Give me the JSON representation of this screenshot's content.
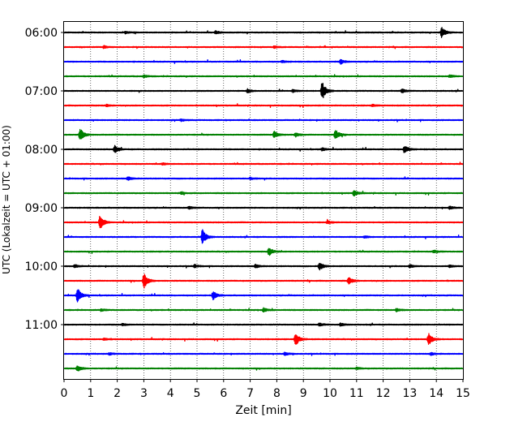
{
  "chart_data": {
    "type": "line",
    "title": "",
    "xlabel": "Zeit  [min]",
    "ylabel": "UTC (Lokalzeit = UTC + 01:00)",
    "xlim": [
      0,
      15
    ],
    "x_ticks": [
      "0",
      "1",
      "2",
      "3",
      "4",
      "5",
      "6",
      "7",
      "8",
      "9",
      "10",
      "11",
      "12",
      "13",
      "14",
      "15"
    ],
    "y_tick_labels": [
      "06:00",
      "07:00",
      "08:00",
      "09:00",
      "10:00",
      "11:00"
    ],
    "grid": "vertical dotted",
    "trace_interval_min": 15,
    "colors": [
      "#000000",
      "#ff0000",
      "#0000ff",
      "#008000"
    ],
    "series": [
      {
        "start": "06:00",
        "color": "#000000",
        "events": [
          [
            14.2,
            1.0
          ],
          [
            5.7,
            0.3
          ],
          [
            2.3,
            0.2
          ]
        ]
      },
      {
        "start": "06:15",
        "color": "#ff0000",
        "events": [
          [
            1.5,
            0.25
          ],
          [
            7.9,
            0.2
          ]
        ]
      },
      {
        "start": "06:30",
        "color": "#0000ff",
        "events": [
          [
            10.4,
            0.45
          ],
          [
            8.2,
            0.2
          ]
        ]
      },
      {
        "start": "06:45",
        "color": "#008000",
        "events": [
          [
            3.0,
            0.25
          ],
          [
            14.5,
            0.25
          ]
        ]
      },
      {
        "start": "07:00",
        "color": "#000000",
        "events": [
          [
            9.7,
            1.8
          ],
          [
            6.9,
            0.35
          ],
          [
            12.7,
            0.4
          ],
          [
            8.6,
            0.25
          ]
        ]
      },
      {
        "start": "07:15",
        "color": "#ff0000",
        "events": [
          [
            1.6,
            0.2
          ],
          [
            11.6,
            0.2
          ]
        ]
      },
      {
        "start": "07:30",
        "color": "#0000ff",
        "events": [
          [
            4.4,
            0.2
          ]
        ]
      },
      {
        "start": "07:45",
        "color": "#008000",
        "events": [
          [
            0.6,
            1.3
          ],
          [
            7.9,
            0.65
          ],
          [
            10.2,
            1.0
          ],
          [
            8.7,
            0.4
          ]
        ]
      },
      {
        "start": "08:00",
        "color": "#000000",
        "events": [
          [
            1.9,
            0.7
          ],
          [
            12.8,
            0.8
          ],
          [
            9.7,
            0.3
          ]
        ]
      },
      {
        "start": "08:15",
        "color": "#ff0000",
        "events": [
          [
            3.7,
            0.2
          ]
        ]
      },
      {
        "start": "08:30",
        "color": "#0000ff",
        "events": [
          [
            2.4,
            0.35
          ],
          [
            7.0,
            0.2
          ]
        ]
      },
      {
        "start": "08:45",
        "color": "#008000",
        "events": [
          [
            10.9,
            0.55
          ],
          [
            4.4,
            0.2
          ]
        ]
      },
      {
        "start": "09:00",
        "color": "#000000",
        "events": [
          [
            4.7,
            0.25
          ],
          [
            14.5,
            0.3
          ]
        ]
      },
      {
        "start": "09:15",
        "color": "#ff0000",
        "events": [
          [
            1.35,
            1.4
          ],
          [
            9.9,
            0.3
          ]
        ]
      },
      {
        "start": "09:30",
        "color": "#0000ff",
        "events": [
          [
            5.2,
            1.5
          ],
          [
            11.3,
            0.2
          ]
        ]
      },
      {
        "start": "09:45",
        "color": "#008000",
        "events": [
          [
            7.7,
            0.85
          ],
          [
            13.9,
            0.25
          ]
        ]
      },
      {
        "start": "10:00",
        "color": "#000000",
        "events": [
          [
            9.6,
            0.8
          ],
          [
            0.4,
            0.3
          ],
          [
            4.9,
            0.3
          ],
          [
            7.2,
            0.35
          ],
          [
            13.0,
            0.3
          ],
          [
            14.5,
            0.2
          ]
        ]
      },
      {
        "start": "10:15",
        "color": "#ff0000",
        "events": [
          [
            3.0,
            1.5
          ],
          [
            10.7,
            0.7
          ]
        ]
      },
      {
        "start": "10:30",
        "color": "#0000ff",
        "events": [
          [
            0.5,
            1.4
          ],
          [
            5.6,
            0.8
          ]
        ]
      },
      {
        "start": "10:45",
        "color": "#008000",
        "events": [
          [
            7.5,
            0.4
          ],
          [
            12.5,
            0.3
          ],
          [
            1.4,
            0.2
          ]
        ]
      },
      {
        "start": "11:00",
        "color": "#000000",
        "events": [
          [
            9.6,
            0.3
          ],
          [
            10.4,
            0.3
          ],
          [
            2.2,
            0.2
          ]
        ]
      },
      {
        "start": "11:15",
        "color": "#ff0000",
        "events": [
          [
            8.7,
            1.3
          ],
          [
            13.7,
            1.2
          ],
          [
            1.5,
            0.2
          ]
        ]
      },
      {
        "start": "11:30",
        "color": "#0000ff",
        "events": [
          [
            8.3,
            0.3
          ],
          [
            13.8,
            0.25
          ],
          [
            1.7,
            0.2
          ]
        ]
      },
      {
        "start": "11:45",
        "color": "#008000",
        "events": [
          [
            0.5,
            0.6
          ],
          [
            11.0,
            0.2
          ]
        ]
      }
    ]
  }
}
